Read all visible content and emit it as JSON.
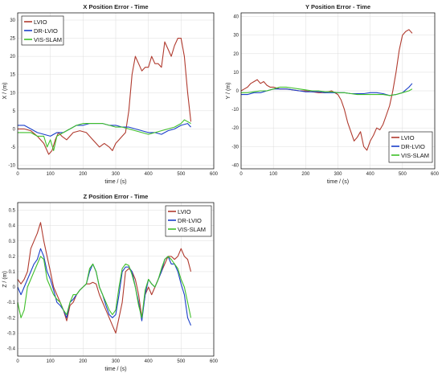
{
  "chart_data": [
    {
      "type": "line",
      "title": "X Position Error - Time",
      "xlabel": "time / (s)",
      "ylabel": "X / (m)",
      "xlim": [
        0,
        600
      ],
      "ylim": [
        -11,
        32
      ],
      "xticks": [
        0,
        100,
        200,
        300,
        400,
        500,
        600
      ],
      "yticks": [
        -10,
        -5,
        0,
        5,
        10,
        15,
        20,
        25,
        30
      ],
      "grid": true,
      "legend_position": "top-left",
      "series": [
        {
          "name": "LVIO",
          "color": "#b03a2e",
          "x": [
            0,
            20,
            40,
            60,
            80,
            95,
            105,
            115,
            125,
            135,
            150,
            170,
            190,
            210,
            230,
            250,
            265,
            280,
            290,
            300,
            310,
            320,
            330,
            340,
            345,
            350,
            360,
            370,
            380,
            390,
            400,
            410,
            420,
            430,
            440,
            450,
            460,
            470,
            480,
            490,
            500,
            510,
            520,
            530
          ],
          "y": [
            0,
            0,
            -0.5,
            -2,
            -4,
            -7,
            -6,
            -3,
            -1,
            -2,
            -3,
            -1,
            -0.5,
            -1,
            -3,
            -5,
            -4,
            -5,
            -6,
            -4,
            -3,
            -2,
            -1,
            5,
            10,
            15,
            20,
            18,
            16,
            17,
            17,
            20,
            18,
            18,
            17,
            24,
            22,
            20,
            23,
            25,
            25,
            20,
            10,
            2
          ]
        },
        {
          "name": "DR-LVIO",
          "color": "#1a3fc9",
          "x": [
            0,
            20,
            40,
            60,
            80,
            100,
            120,
            140,
            160,
            180,
            200,
            220,
            240,
            260,
            280,
            300,
            320,
            340,
            360,
            380,
            400,
            420,
            440,
            460,
            480,
            500,
            520,
            530
          ],
          "y": [
            1,
            1,
            0,
            -1,
            -1.5,
            -2,
            -1,
            -1,
            0,
            1,
            1,
            1.5,
            1.5,
            1.5,
            1,
            1,
            0.5,
            0.5,
            0,
            -0.5,
            -1,
            -1,
            -1.5,
            -0.5,
            0,
            1,
            1.5,
            0.5
          ]
        },
        {
          "name": "VIS-SLAM",
          "color": "#3fbf2a",
          "x": [
            0,
            20,
            40,
            60,
            80,
            90,
            100,
            110,
            120,
            140,
            160,
            180,
            200,
            220,
            240,
            260,
            280,
            300,
            320,
            340,
            360,
            380,
            400,
            420,
            440,
            460,
            480,
            500,
            510,
            520,
            530
          ],
          "y": [
            -1,
            -1,
            -1,
            -2,
            -2,
            -5,
            -3,
            -6,
            -2,
            -1,
            0,
            1,
            1.5,
            1.5,
            1.5,
            1.5,
            1,
            0.5,
            0.5,
            0,
            -0.5,
            -1,
            -1.5,
            -1,
            -0.5,
            0,
            0.5,
            1.5,
            2.5,
            2,
            1.5
          ]
        }
      ]
    },
    {
      "type": "line",
      "title": "Y Position Error - Time",
      "xlabel": "time / (s)",
      "ylabel": "Y / (m)",
      "xlim": [
        0,
        600
      ],
      "ylim": [
        -42,
        42
      ],
      "xticks": [
        0,
        100,
        200,
        300,
        400,
        500,
        600
      ],
      "yticks": [
        -40,
        -30,
        -20,
        -10,
        0,
        10,
        20,
        30,
        40
      ],
      "grid": true,
      "legend_position": "bottom-right",
      "series": [
        {
          "name": "LVIO",
          "color": "#b03a2e",
          "x": [
            0,
            10,
            20,
            30,
            40,
            50,
            60,
            70,
            80,
            90,
            100,
            120,
            140,
            160,
            180,
            200,
            220,
            240,
            260,
            280,
            300,
            310,
            320,
            330,
            340,
            350,
            360,
            370,
            380,
            390,
            400,
            410,
            420,
            430,
            440,
            450,
            460,
            470,
            480,
            490,
            500,
            510,
            520,
            530
          ],
          "y": [
            0,
            1,
            2,
            4,
            5,
            6,
            4,
            5,
            3,
            2,
            2,
            1,
            1,
            0.5,
            0,
            0,
            -0.5,
            -1,
            -1,
            0,
            -2,
            -5,
            -10,
            -17,
            -22,
            -27,
            -25,
            -22,
            -30,
            -32,
            -27,
            -24,
            -20,
            -21,
            -18,
            -13,
            -8,
            0,
            10,
            22,
            30,
            32,
            33,
            31
          ]
        },
        {
          "name": "DR-LVIO",
          "color": "#1a3fc9",
          "x": [
            0,
            20,
            40,
            60,
            80,
            100,
            120,
            140,
            160,
            180,
            200,
            220,
            240,
            260,
            280,
            300,
            320,
            340,
            360,
            380,
            400,
            420,
            440,
            460,
            480,
            500,
            520,
            530
          ],
          "y": [
            -2,
            -2,
            -1,
            -1,
            0,
            1,
            1,
            1,
            0.5,
            0,
            -0.5,
            -0.5,
            -0.5,
            -1,
            -1,
            -1,
            -1,
            -1.5,
            -1.5,
            -1.5,
            -1,
            -1,
            -1.5,
            -2.5,
            -2,
            -1,
            2,
            4
          ]
        },
        {
          "name": "VIS-SLAM",
          "color": "#3fbf2a",
          "x": [
            0,
            20,
            40,
            60,
            80,
            100,
            120,
            140,
            160,
            180,
            200,
            220,
            240,
            260,
            280,
            300,
            320,
            340,
            360,
            380,
            400,
            420,
            440,
            460,
            480,
            500,
            520,
            530
          ],
          "y": [
            -1,
            -1,
            -0.5,
            0,
            0,
            1,
            2,
            2,
            1.5,
            1,
            0.5,
            0,
            0,
            -0.5,
            -0.5,
            -1,
            -1,
            -1.5,
            -2,
            -2,
            -2,
            -2,
            -2,
            -2.5,
            -2,
            -1,
            0,
            1
          ]
        }
      ]
    },
    {
      "type": "line",
      "title": "Z Position Error - Time",
      "xlabel": "time / (s)",
      "ylabel": "Z / (m)",
      "xlim": [
        0,
        600
      ],
      "ylim": [
        -0.45,
        0.55
      ],
      "xticks": [
        0,
        100,
        200,
        300,
        400,
        500,
        600
      ],
      "yticks": [
        -0.4,
        -0.3,
        -0.2,
        -0.1,
        0,
        0.1,
        0.2,
        0.3,
        0.4,
        0.5
      ],
      "grid": true,
      "legend_position": "top-right",
      "series": [
        {
          "name": "LVIO",
          "color": "#b03a2e",
          "x": [
            0,
            10,
            20,
            30,
            40,
            50,
            60,
            70,
            80,
            90,
            100,
            110,
            120,
            130,
            140,
            150,
            160,
            170,
            180,
            190,
            200,
            210,
            220,
            230,
            240,
            250,
            260,
            270,
            280,
            290,
            300,
            310,
            320,
            330,
            340,
            350,
            360,
            370,
            380,
            390,
            400,
            410,
            420,
            430,
            440,
            450,
            460,
            470,
            480,
            490,
            500,
            510,
            520,
            530
          ],
          "y": [
            0.05,
            0.02,
            0.05,
            0.1,
            0.25,
            0.3,
            0.35,
            0.42,
            0.3,
            0.2,
            0.1,
            0,
            -0.05,
            -0.1,
            -0.15,
            -0.22,
            -0.12,
            -0.1,
            -0.05,
            -0.02,
            0,
            0.02,
            0.02,
            0.03,
            0.02,
            -0.05,
            -0.1,
            -0.15,
            -0.2,
            -0.25,
            -0.3,
            -0.2,
            -0.1,
            0.1,
            0.12,
            0.1,
            0.05,
            -0.05,
            -0.2,
            -0.05,
            0,
            -0.05,
            0,
            0.05,
            0.1,
            0.15,
            0.2,
            0.2,
            0.18,
            0.2,
            0.25,
            0.2,
            0.18,
            0.1
          ]
        },
        {
          "name": "DR-LVIO",
          "color": "#1a3fc9",
          "x": [
            0,
            10,
            20,
            30,
            40,
            50,
            60,
            70,
            80,
            90,
            100,
            110,
            120,
            130,
            140,
            150,
            160,
            170,
            180,
            190,
            200,
            210,
            220,
            230,
            240,
            250,
            260,
            270,
            280,
            290,
            300,
            310,
            320,
            330,
            340,
            350,
            360,
            370,
            380,
            390,
            400,
            410,
            420,
            430,
            440,
            450,
            460,
            470,
            480,
            490,
            500,
            510,
            520,
            530
          ],
          "y": [
            0,
            -0.05,
            0,
            0.05,
            0.1,
            0.15,
            0.18,
            0.25,
            0.2,
            0.1,
            0.05,
            -0.02,
            -0.1,
            -0.12,
            -0.15,
            -0.2,
            -0.1,
            -0.08,
            -0.05,
            -0.02,
            0,
            0.02,
            0.1,
            0.15,
            0.1,
            0,
            -0.05,
            -0.12,
            -0.18,
            -0.2,
            -0.18,
            -0.05,
            0.1,
            0.13,
            0.13,
            0.1,
            0,
            -0.1,
            -0.22,
            -0.05,
            0.05,
            0.02,
            0,
            0.05,
            0.1,
            0.18,
            0.2,
            0.15,
            0.15,
            0.1,
            0.02,
            -0.05,
            -0.2,
            -0.25
          ]
        },
        {
          "name": "VIS-SLAM",
          "color": "#3fbf2a",
          "x": [
            0,
            10,
            20,
            30,
            40,
            50,
            60,
            70,
            80,
            90,
            100,
            110,
            120,
            130,
            140,
            150,
            160,
            170,
            180,
            190,
            200,
            210,
            220,
            230,
            240,
            250,
            260,
            270,
            280,
            290,
            300,
            310,
            320,
            330,
            340,
            350,
            360,
            370,
            380,
            390,
            400,
            410,
            420,
            430,
            440,
            450,
            460,
            470,
            480,
            490,
            500,
            510,
            520,
            530
          ],
          "y": [
            -0.1,
            -0.2,
            -0.15,
            0,
            0.05,
            0.1,
            0.15,
            0.2,
            0.18,
            0.05,
            0,
            -0.05,
            -0.08,
            -0.1,
            -0.15,
            -0.18,
            -0.1,
            -0.05,
            -0.05,
            -0.02,
            0,
            0.02,
            0.12,
            0.15,
            0.1,
            0,
            -0.05,
            -0.1,
            -0.15,
            -0.18,
            -0.15,
            0,
            0.12,
            0.15,
            0.14,
            0.08,
            0,
            -0.12,
            -0.2,
            -0.02,
            0.05,
            0.02,
            0,
            0.05,
            0.12,
            0.18,
            0.2,
            0.18,
            0.15,
            0.12,
            0.05,
            0,
            -0.1,
            -0.2
          ]
        }
      ]
    }
  ]
}
